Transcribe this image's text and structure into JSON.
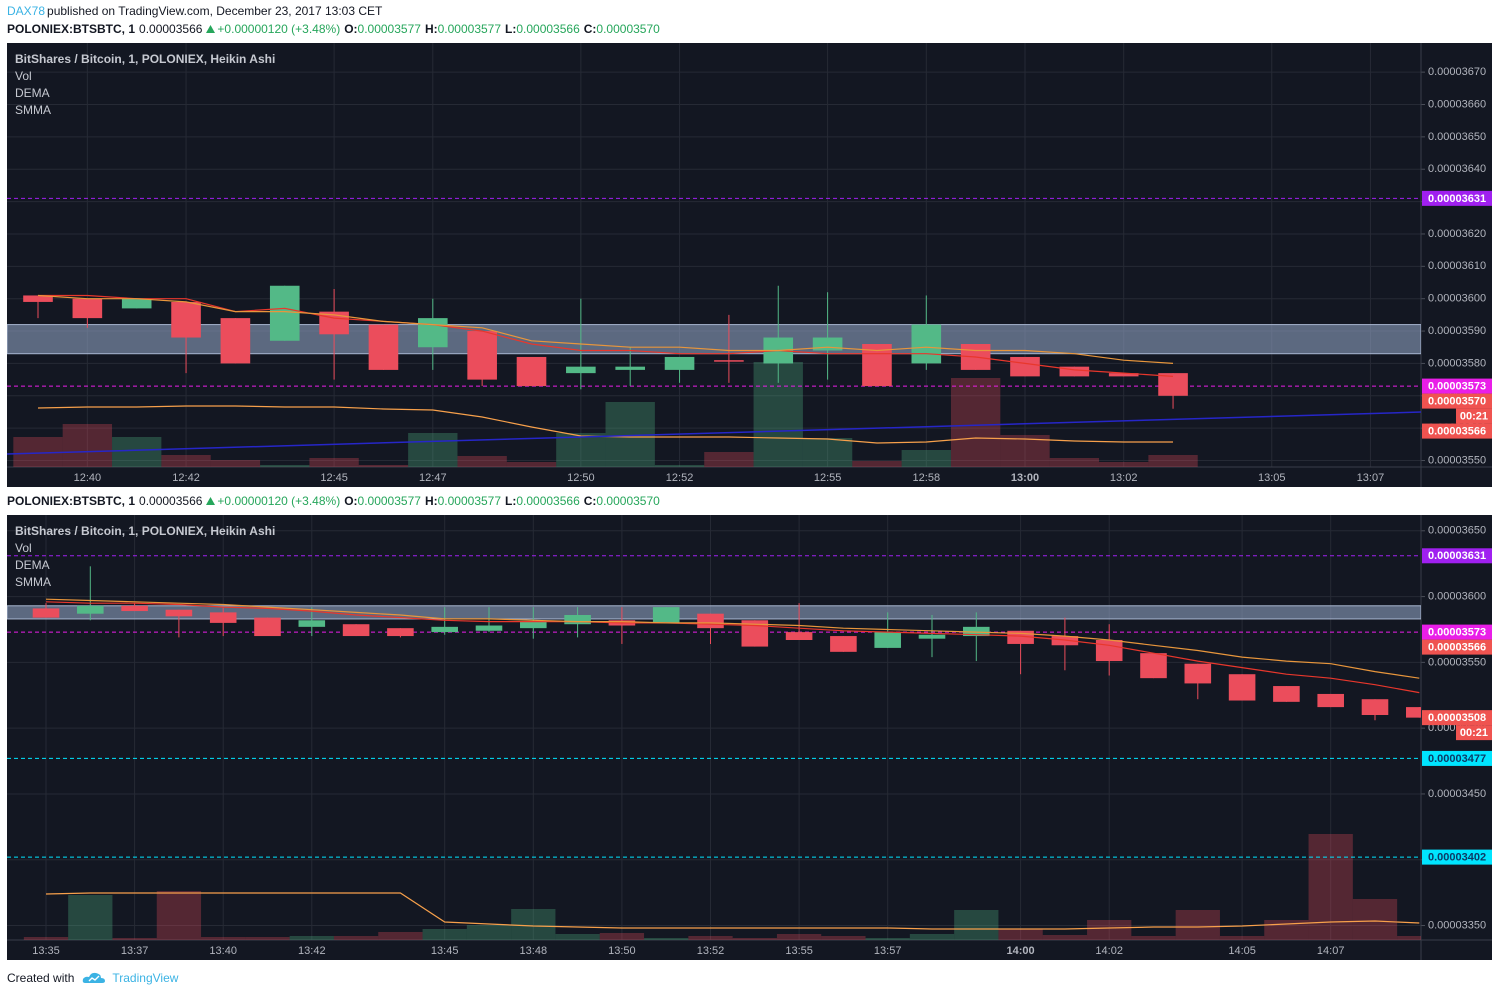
{
  "header": {
    "author": "DAX78",
    "published": "published on TradingView.com, December 23, 2017 13:03 CET"
  },
  "footer": {
    "created": "Created with",
    "brand": "TradingView"
  },
  "chart_data": [
    {
      "type": "candlestick",
      "info": {
        "symbol": "POLONIEX:BTSBTC, 1",
        "last": "0.00003566",
        "change": "+0.00000120 (+3.48%)",
        "ohlc": [
          {
            "label": "O:",
            "value": "0.00003577"
          },
          {
            "label": "H:",
            "value": "0.00003577"
          },
          {
            "label": "L:",
            "value": "0.00003566"
          },
          {
            "label": "C:",
            "value": "0.00003570"
          }
        ]
      },
      "title": "BitShares / Bitcoin, 1, POLONIEX, Heikin Ashi",
      "categories": [
        null,
        "12:40",
        null,
        "12:42",
        null,
        null,
        "12:45",
        null,
        "12:47",
        null,
        null,
        "12:50",
        null,
        "12:52",
        null,
        null,
        "12:55",
        null,
        "12:58",
        null,
        "13:00",
        null,
        "13:02",
        null,
        null,
        "13:05",
        null,
        "13:07"
      ],
      "open": [
        3.601e-05,
        3.6e-05,
        3.597e-05,
        3.599e-05,
        3.594e-05,
        3.587e-05,
        3.596e-05,
        3.592e-05,
        3.585e-05,
        3.59e-05,
        3.582e-05,
        3.577e-05,
        3.578e-05,
        3.578e-05,
        3.581e-05,
        3.58e-05,
        3.584e-05,
        3.586e-05,
        3.58e-05,
        3.586e-05,
        3.582e-05,
        3.579e-05,
        3.577e-05,
        3.577e-05,
        null,
        null,
        null,
        null
      ],
      "high": [
        3.601e-05,
        3.6e-05,
        3.6e-05,
        3.599e-05,
        3.594e-05,
        3.604e-05,
        3.603e-05,
        3.592e-05,
        3.6e-05,
        3.59e-05,
        3.582e-05,
        3.6e-05,
        3.585e-05,
        3.582e-05,
        3.595e-05,
        3.604e-05,
        3.602e-05,
        3.586e-05,
        3.601e-05,
        3.586e-05,
        3.582e-05,
        3.579e-05,
        3.577e-05,
        3.577e-05,
        null,
        null,
        null,
        null
      ],
      "low": [
        3.594e-05,
        3.591e-05,
        3.597e-05,
        3.577e-05,
        3.58e-05,
        3.587e-05,
        3.575e-05,
        3.578e-05,
        3.578e-05,
        3.573e-05,
        3.573e-05,
        3.572e-05,
        3.573e-05,
        3.574e-05,
        3.574e-05,
        3.574e-05,
        3.575e-05,
        3.573e-05,
        3.578e-05,
        3.578e-05,
        3.576e-05,
        3.576e-05,
        3.576e-05,
        3.566e-05,
        null,
        null,
        null,
        null
      ],
      "close": [
        3.599e-05,
        3.594e-05,
        3.6e-05,
        3.588e-05,
        3.58e-05,
        3.604e-05,
        3.589e-05,
        3.578e-05,
        3.594e-05,
        3.575e-05,
        3.573e-05,
        3.579e-05,
        3.579e-05,
        3.582e-05,
        3.581e-05,
        3.588e-05,
        3.588e-05,
        3.573e-05,
        3.592e-05,
        3.578e-05,
        3.576e-05,
        3.576e-05,
        3.576e-05,
        3.57e-05,
        null,
        null,
        null,
        null
      ],
      "up_color": "#53b987",
      "down_color": "#eb4d5c",
      "volume": {
        "name": "Vol",
        "values": [
          30,
          43,
          30,
          12,
          7,
          2,
          9,
          2,
          34,
          11,
          5,
          34,
          65,
          2,
          15,
          105,
          29,
          6,
          17,
          89,
          32,
          9,
          5,
          12,
          null,
          null,
          null,
          null
        ],
        "ma": [
          59,
          60,
          60,
          61,
          61,
          60,
          60,
          58,
          57,
          50,
          40,
          31,
          30,
          30,
          30,
          29,
          28,
          24,
          25,
          29,
          28,
          26,
          25,
          25,
          null,
          null,
          null,
          null
        ],
        "ma_color": "#f7a04b"
      },
      "overlays": [
        {
          "name": "DEMA",
          "color": "#e8372c",
          "values": [
            3.601e-05,
            3.601e-05,
            3.6e-05,
            3.6e-05,
            3.596e-05,
            3.597e-05,
            3.594e-05,
            3.593e-05,
            3.592e-05,
            3.59e-05,
            3.586e-05,
            3.584e-05,
            3.584e-05,
            3.583e-05,
            3.583e-05,
            3.584e-05,
            3.583e-05,
            3.583e-05,
            3.583e-05,
            3.582e-05,
            3.58e-05,
            3.578e-05,
            3.577e-05,
            3.576e-05,
            null,
            null,
            null,
            null
          ]
        },
        {
          "name": "SMMA",
          "color": "#e8963c",
          "values": [
            3.601e-05,
            3.6e-05,
            3.6e-05,
            3.599e-05,
            3.596e-05,
            3.596e-05,
            3.595e-05,
            3.593e-05,
            3.592e-05,
            3.591e-05,
            3.587e-05,
            3.586e-05,
            3.585e-05,
            3.585e-05,
            3.584e-05,
            3.584e-05,
            3.585e-05,
            3.584e-05,
            3.585e-05,
            3.584e-05,
            3.584e-05,
            3.583e-05,
            3.581e-05,
            3.58e-05,
            null,
            null,
            null,
            null
          ]
        }
      ],
      "zone": [
        3.583e-05,
        3.592e-05
      ],
      "trend_line": {
        "color": "#2626c8",
        "x": [
          -0.63,
          28.05
        ],
        "y": [
          3.552e-05,
          3.565e-05
        ]
      },
      "price_lines": [
        {
          "value": 3.631e-05,
          "label": "0.00003631",
          "color": "#a020f0",
          "label_color": "#ffffff"
        },
        {
          "value": 3.573e-05,
          "label": "0.00003573",
          "color": "#e91ee8",
          "label_color": "#ffffff"
        }
      ],
      "price_tags": [
        {
          "value": 3.57e-05,
          "label": "0.00003570",
          "color": "#ef5350",
          "label_color": "#ffffff",
          "countdown": "00:21"
        },
        {
          "value": 3.566e-05,
          "label": "0.00003566",
          "color": "#ef5350",
          "label_color": "#ffffff"
        }
      ],
      "ylim": [
        3.548e-05,
        3.679e-05
      ],
      "yticks": [
        {
          "value": 3.55e-05,
          "label": "0.00003550"
        },
        {
          "value": 3.56e-05,
          "label": "0.00003560"
        },
        {
          "value": 3.57e-05,
          "label": "0.00003570"
        },
        {
          "value": 3.58e-05,
          "label": "0.00003580"
        },
        {
          "value": 3.59e-05,
          "label": "0.00003590"
        },
        {
          "value": 3.6e-05,
          "label": "0.00003600"
        },
        {
          "value": 3.61e-05,
          "label": "0.00003610"
        },
        {
          "value": 3.62e-05,
          "label": "0.00003620"
        },
        {
          "value": 3.63e-05,
          "label": "0.00003630"
        },
        {
          "value": 3.64e-05,
          "label": "0.00003640"
        },
        {
          "value": 3.65e-05,
          "label": "0.00003650"
        },
        {
          "value": 3.66e-05,
          "label": "0.00003660"
        },
        {
          "value": 3.67e-05,
          "label": "0.00003670"
        }
      ],
      "grid": true
    },
    {
      "type": "candlestick",
      "info": {
        "symbol": "POLONIEX:BTSBTC, 1",
        "last": "0.00003566",
        "change": "+0.00000120 (+3.48%)",
        "ohlc": [
          {
            "label": "O:",
            "value": "0.00003577"
          },
          {
            "label": "H:",
            "value": "0.00003577"
          },
          {
            "label": "L:",
            "value": "0.00003566"
          },
          {
            "label": "C:",
            "value": "0.00003570"
          }
        ]
      },
      "title": "BitShares / Bitcoin, 1, POLONIEX, Heikin Ashi",
      "categories": [
        "13:35",
        null,
        "13:37",
        null,
        "13:40",
        null,
        "13:42",
        null,
        null,
        "13:45",
        null,
        "13:48",
        null,
        "13:50",
        null,
        "13:52",
        null,
        "13:55",
        null,
        "13:57",
        null,
        null,
        "14:00",
        null,
        "14:02",
        null,
        null,
        "14:05",
        null,
        "14:07",
        null,
        null
      ],
      "open": [
        3.591e-05,
        3.587e-05,
        3.593e-05,
        3.59e-05,
        3.588e-05,
        3.584e-05,
        3.577e-05,
        3.579e-05,
        3.576e-05,
        3.573e-05,
        3.574e-05,
        3.576e-05,
        3.579e-05,
        3.582e-05,
        3.58e-05,
        3.587e-05,
        3.582e-05,
        3.573e-05,
        3.57e-05,
        3.561e-05,
        3.568e-05,
        3.57e-05,
        3.574e-05,
        3.57e-05,
        3.567e-05,
        3.557e-05,
        3.549e-05,
        3.541e-05,
        3.532e-05,
        3.526e-05,
        3.522e-05,
        3.516e-05
      ],
      "high": [
        3.595e-05,
        3.623e-05,
        3.595e-05,
        3.59e-05,
        3.592e-05,
        3.584e-05,
        3.592e-05,
        3.579e-05,
        3.576e-05,
        3.592e-05,
        3.592e-05,
        3.592e-05,
        3.592e-05,
        3.592e-05,
        3.592e-05,
        3.587e-05,
        3.582e-05,
        3.595e-05,
        3.57e-05,
        3.588e-05,
        3.586e-05,
        3.588e-05,
        3.574e-05,
        3.584e-05,
        3.579e-05,
        3.557e-05,
        3.549e-05,
        3.541e-05,
        3.532e-05,
        3.526e-05,
        3.522e-05,
        3.516e-05
      ],
      "low": [
        3.584e-05,
        3.582e-05,
        3.589e-05,
        3.569e-05,
        3.57e-05,
        3.57e-05,
        3.57e-05,
        3.57e-05,
        3.569e-05,
        3.571e-05,
        3.573e-05,
        3.568e-05,
        3.569e-05,
        3.564e-05,
        3.58e-05,
        3.564e-05,
        3.562e-05,
        3.567e-05,
        3.558e-05,
        3.561e-05,
        3.554e-05,
        3.551e-05,
        3.541e-05,
        3.544e-05,
        3.54e-05,
        3.538e-05,
        3.522e-05,
        3.521e-05,
        3.52e-05,
        3.516e-05,
        3.506e-05,
        3.508e-05
      ],
      "close": [
        3.584e-05,
        3.593e-05,
        3.589e-05,
        3.585e-05,
        3.58e-05,
        3.57e-05,
        3.582e-05,
        3.57e-05,
        3.57e-05,
        3.577e-05,
        3.578e-05,
        3.581e-05,
        3.586e-05,
        3.578e-05,
        3.592e-05,
        3.576e-05,
        3.562e-05,
        3.567e-05,
        3.558e-05,
        3.573e-05,
        3.571e-05,
        3.577e-05,
        3.564e-05,
        3.563e-05,
        3.551e-05,
        3.538e-05,
        3.534e-05,
        3.521e-05,
        3.52e-05,
        3.516e-05,
        3.51e-05,
        3.508e-05
      ],
      "up_color": "#53b987",
      "down_color": "#eb4d5c",
      "volume": {
        "name": "Vol",
        "values": [
          3,
          45,
          2,
          49,
          3,
          3,
          4,
          4,
          8,
          11,
          15,
          31,
          6,
          7,
          2,
          4,
          2,
          6,
          4,
          2,
          6,
          30,
          11,
          5,
          20,
          4,
          30,
          4,
          20,
          106,
          41,
          4
        ],
        "ma": [
          46,
          47,
          47,
          47,
          47,
          47,
          47,
          47,
          47,
          18,
          16,
          14,
          13,
          12,
          12,
          12,
          12,
          12,
          12,
          12,
          11,
          11,
          11,
          11,
          12,
          13,
          13,
          14,
          16,
          18,
          19,
          17
        ],
        "ma_color": "#f7a04b"
      },
      "overlays": [
        {
          "name": "DEMA",
          "color": "#e8372c",
          "values": [
            3.596e-05,
            3.595e-05,
            3.595e-05,
            3.594e-05,
            3.592e-05,
            3.591e-05,
            3.589e-05,
            3.586e-05,
            3.584e-05,
            3.582e-05,
            3.581e-05,
            3.581e-05,
            3.581e-05,
            3.58e-05,
            3.58e-05,
            3.579e-05,
            3.578e-05,
            3.576e-05,
            3.574e-05,
            3.573e-05,
            3.572e-05,
            3.571e-05,
            3.57e-05,
            3.567e-05,
            3.563e-05,
            3.557e-05,
            3.551e-05,
            3.546e-05,
            3.541e-05,
            3.538e-05,
            3.533e-05,
            3.527e-05
          ]
        },
        {
          "name": "SMMA",
          "color": "#e8963c",
          "values": [
            3.598e-05,
            3.597e-05,
            3.596e-05,
            3.595e-05,
            3.594e-05,
            3.592e-05,
            3.59e-05,
            3.588e-05,
            3.586e-05,
            3.583e-05,
            3.583e-05,
            3.582e-05,
            3.581e-05,
            3.581e-05,
            3.58e-05,
            3.58e-05,
            3.579e-05,
            3.578e-05,
            3.576e-05,
            3.575e-05,
            3.574e-05,
            3.573e-05,
            3.572e-05,
            3.57e-05,
            3.567e-05,
            3.563e-05,
            3.559e-05,
            3.554e-05,
            3.551e-05,
            3.549e-05,
            3.543e-05,
            3.538e-05
          ]
        }
      ],
      "zone": [
        3.583e-05,
        3.593e-05
      ],
      "price_lines": [
        {
          "value": 3.631e-05,
          "label": "0.00003631",
          "color": "#a020f0",
          "label_color": "#ffffff"
        },
        {
          "value": 3.573e-05,
          "label": "0.00003573",
          "color": "#e91ee8",
          "label_color": "#ffffff"
        },
        {
          "value": 3.477e-05,
          "label": "0.00003477",
          "color": "#00e5ff",
          "label_color": "#0c3a66"
        },
        {
          "value": 3.402e-05,
          "label": "0.00003402",
          "color": "#00e5ff",
          "label_color": "#0c3a66"
        }
      ],
      "price_tags": [
        {
          "value": 3.566e-05,
          "label": "0.00003566",
          "color": "#ef5350",
          "label_color": "#ffffff"
        },
        {
          "value": 3.508e-05,
          "label": "0.00003508",
          "color": "#ef5350",
          "label_color": "#ffffff",
          "countdown": "00:21"
        }
      ],
      "ylim": [
        3.339e-05,
        3.662e-05
      ],
      "yticks": [
        {
          "value": 3.35e-05,
          "label": "0.00003350"
        },
        {
          "value": 3.4e-05,
          "label": "0.00003400"
        },
        {
          "value": 3.45e-05,
          "label": "0.00003450"
        },
        {
          "value": 3.5e-05,
          "label": "0.00003500"
        },
        {
          "value": 3.55e-05,
          "label": "0.00003550"
        },
        {
          "value": 3.6e-05,
          "label": "0.00003600"
        },
        {
          "value": 3.65e-05,
          "label": "0.00003650"
        }
      ],
      "grid": true
    }
  ]
}
